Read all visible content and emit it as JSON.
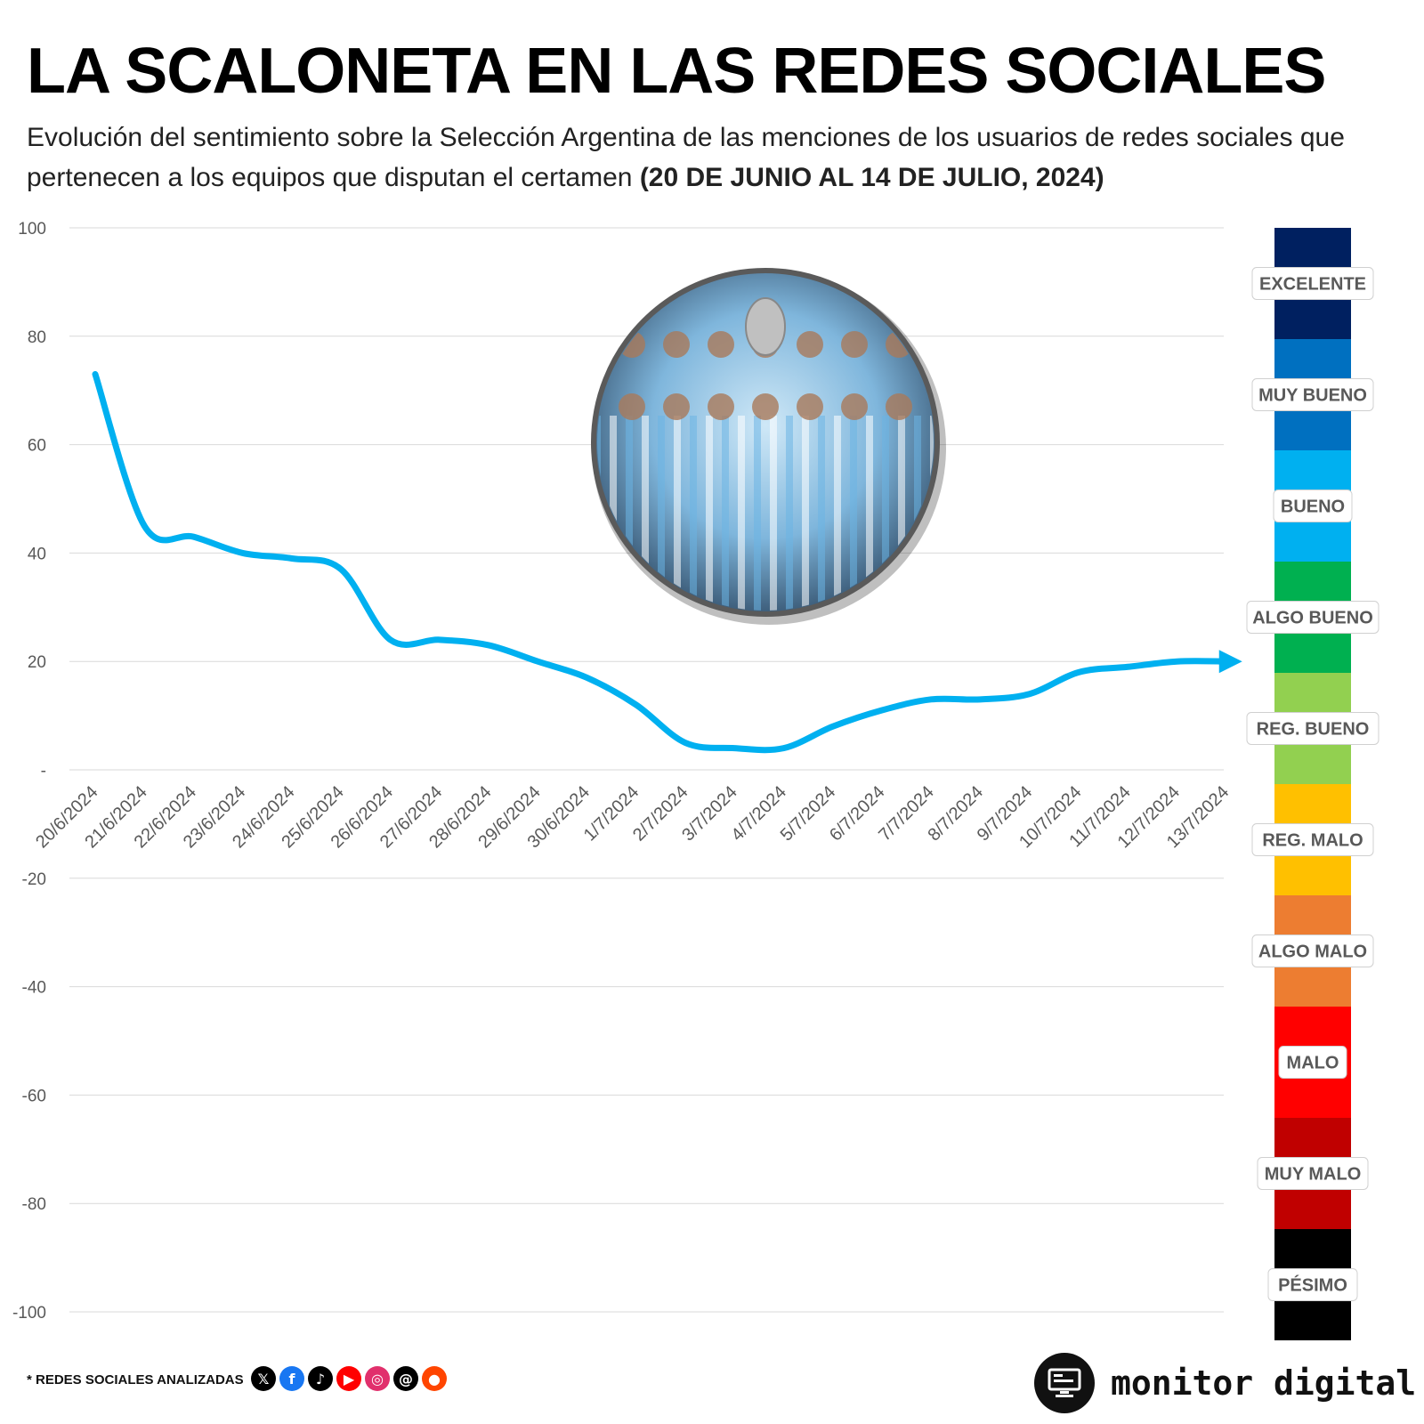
{
  "header": {
    "title": "LA SCALONETA EN LAS REDES SOCIALES",
    "subtitle": "Evolución del sentimiento sobre la Selección Argentina de las menciones de los usuarios de redes sociales que pertenecen a los equipos que disputan el certamen",
    "subtitle_bold": "(20 DE JUNIO AL 14 DE JULIO, 2024)"
  },
  "chart_data": {
    "type": "line",
    "x": [
      "20/6/2024",
      "21/6/2024",
      "22/6/2024",
      "23/6/2024",
      "24/6/2024",
      "25/6/2024",
      "26/6/2024",
      "27/6/2024",
      "28/6/2024",
      "29/6/2024",
      "30/6/2024",
      "1/7/2024",
      "2/7/2024",
      "3/7/2024",
      "4/7/2024",
      "5/7/2024",
      "6/7/2024",
      "7/7/2024",
      "8/7/2024",
      "9/7/2024",
      "10/7/2024",
      "11/7/2024",
      "12/7/2024",
      "13/7/2024"
    ],
    "series": [
      {
        "values": [
          73,
          45,
          43,
          40,
          39,
          37,
          24,
          24,
          23,
          20,
          17,
          12,
          5,
          4,
          4,
          8,
          11,
          13,
          13,
          14,
          18,
          19,
          20,
          20
        ],
        "color": "#00b0f0"
      }
    ],
    "ylim": [
      -100,
      100
    ],
    "yticks": [
      100,
      80,
      60,
      40,
      20,
      0,
      -20,
      -40,
      -60,
      -80,
      -100
    ],
    "ytick_labels": [
      "100",
      "80",
      "60",
      "40",
      "20",
      "-",
      "-20",
      "-40",
      "-60",
      "-80",
      "-100"
    ],
    "grid": true,
    "end_marker": "arrow",
    "sentiment_scale": [
      {
        "label": "EXCELENTE",
        "from": 80,
        "to": 100,
        "color": "#002060"
      },
      {
        "label": "MUY BUENO",
        "from": 60,
        "to": 80,
        "color": "#0070c0"
      },
      {
        "label": "BUENO",
        "from": 40,
        "to": 60,
        "color": "#00b0f0"
      },
      {
        "label": "ALGO BUENO",
        "from": 20,
        "to": 40,
        "color": "#00b050"
      },
      {
        "label": "REG. BUENO",
        "from": 0,
        "to": 20,
        "color": "#92d050"
      },
      {
        "label": "REG. MALO",
        "from": -20,
        "to": 0,
        "color": "#ffc000"
      },
      {
        "label": "ALGO MALO",
        "from": -40,
        "to": -20,
        "color": "#ed7d31"
      },
      {
        "label": "MALO",
        "from": -60,
        "to": -40,
        "color": "#ff0000"
      },
      {
        "label": "MUY MALO",
        "from": -80,
        "to": -60,
        "color": "#c00000"
      },
      {
        "label": "PÉSIMO",
        "from": -100,
        "to": -80,
        "color": "#000000"
      }
    ]
  },
  "footer": {
    "note": "* REDES SOCIALES ANALIZADAS",
    "social_icons": [
      {
        "icon": "x-icon",
        "glyph": "𝕏",
        "color": "#000000"
      },
      {
        "icon": "facebook-icon",
        "glyph": "f",
        "color": "#1877f2"
      },
      {
        "icon": "tiktok-icon",
        "glyph": "♪",
        "color": "#000000"
      },
      {
        "icon": "youtube-icon",
        "glyph": "▶",
        "color": "#ff0000"
      },
      {
        "icon": "instagram-icon",
        "glyph": "◎",
        "color": "#e1306c"
      },
      {
        "icon": "threads-icon",
        "glyph": "@",
        "color": "#000000"
      },
      {
        "icon": "reddit-icon",
        "glyph": "●",
        "color": "#ff4500"
      }
    ],
    "brand": "monitor digital"
  }
}
